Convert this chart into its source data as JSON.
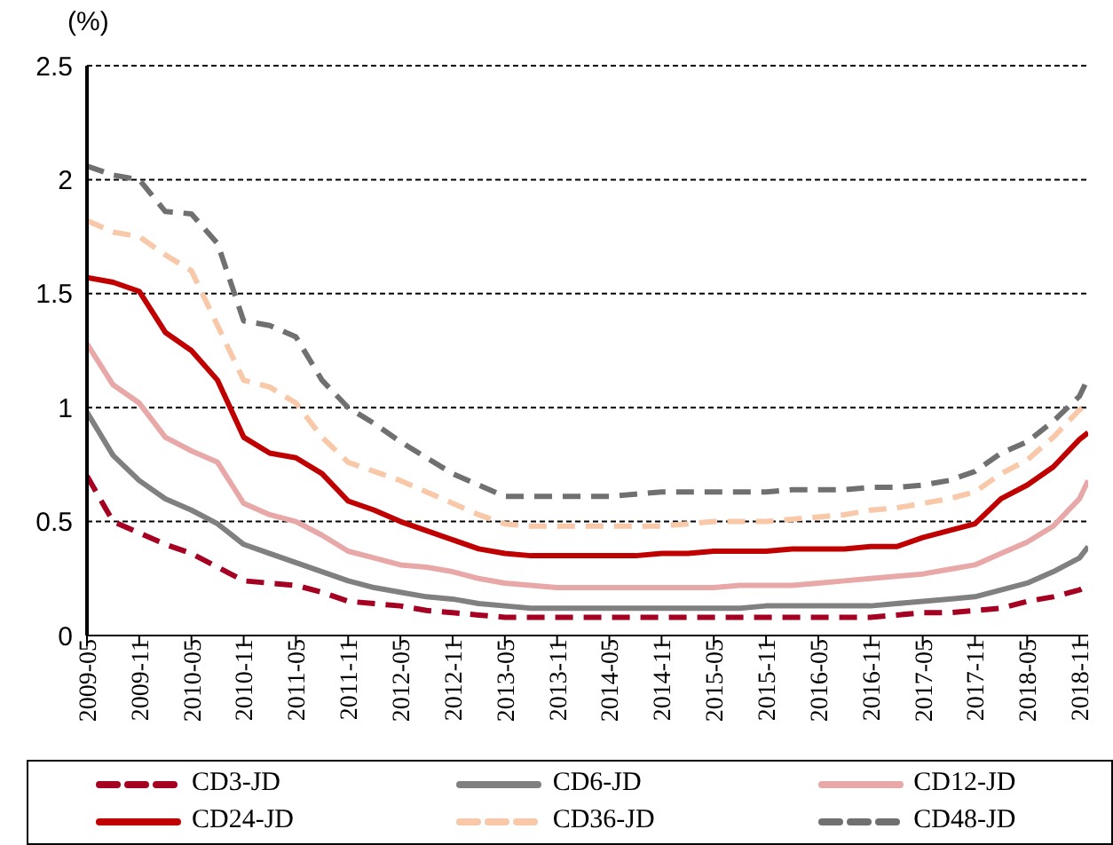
{
  "chart_data": {
    "type": "line",
    "ylabel": "(%)",
    "x": [
      "2009-05",
      "2009-08",
      "2009-11",
      "2010-02",
      "2010-05",
      "2010-08",
      "2010-11",
      "2011-02",
      "2011-05",
      "2011-08",
      "2011-11",
      "2012-02",
      "2012-05",
      "2012-08",
      "2012-11",
      "2013-02",
      "2013-05",
      "2013-08",
      "2013-11",
      "2014-02",
      "2014-05",
      "2014-08",
      "2014-11",
      "2015-02",
      "2015-05",
      "2015-08",
      "2015-11",
      "2016-02",
      "2016-05",
      "2016-08",
      "2016-11",
      "2017-02",
      "2017-05",
      "2017-08",
      "2017-11",
      "2018-02",
      "2018-05",
      "2018-08",
      "2018-11",
      "2018-12"
    ],
    "series": [
      {
        "name": "CD3-JD",
        "color": "#a50021",
        "line_style": "dashed",
        "values": [
          0.7,
          0.5,
          0.45,
          0.4,
          0.36,
          0.3,
          0.24,
          0.23,
          0.22,
          0.19,
          0.15,
          0.14,
          0.13,
          0.11,
          0.1,
          0.09,
          0.08,
          0.08,
          0.08,
          0.08,
          0.08,
          0.08,
          0.08,
          0.08,
          0.08,
          0.08,
          0.08,
          0.08,
          0.08,
          0.08,
          0.08,
          0.09,
          0.1,
          0.1,
          0.11,
          0.12,
          0.15,
          0.17,
          0.2,
          0.22
        ]
      },
      {
        "name": "CD6-JD",
        "color": "#808080",
        "line_style": "solid",
        "values": [
          0.98,
          0.79,
          0.68,
          0.6,
          0.55,
          0.49,
          0.4,
          0.36,
          0.32,
          0.28,
          0.24,
          0.21,
          0.19,
          0.17,
          0.16,
          0.14,
          0.13,
          0.12,
          0.12,
          0.12,
          0.12,
          0.12,
          0.12,
          0.12,
          0.12,
          0.12,
          0.13,
          0.13,
          0.13,
          0.13,
          0.13,
          0.14,
          0.15,
          0.16,
          0.17,
          0.2,
          0.23,
          0.28,
          0.34,
          0.39
        ]
      },
      {
        "name": "CD12-JD",
        "color": "#e8a8a8",
        "line_style": "solid",
        "values": [
          1.28,
          1.1,
          1.02,
          0.87,
          0.81,
          0.76,
          0.58,
          0.53,
          0.5,
          0.44,
          0.37,
          0.34,
          0.31,
          0.3,
          0.28,
          0.25,
          0.23,
          0.22,
          0.21,
          0.21,
          0.21,
          0.21,
          0.21,
          0.21,
          0.21,
          0.22,
          0.22,
          0.22,
          0.23,
          0.24,
          0.25,
          0.26,
          0.27,
          0.29,
          0.31,
          0.36,
          0.41,
          0.48,
          0.6,
          0.68
        ]
      },
      {
        "name": "CD24-JD",
        "color": "#c00000",
        "line_style": "solid",
        "values": [
          1.57,
          1.55,
          1.51,
          1.33,
          1.25,
          1.12,
          0.87,
          0.8,
          0.78,
          0.71,
          0.59,
          0.55,
          0.5,
          0.46,
          0.42,
          0.38,
          0.36,
          0.35,
          0.35,
          0.35,
          0.35,
          0.35,
          0.36,
          0.36,
          0.37,
          0.37,
          0.37,
          0.38,
          0.38,
          0.38,
          0.39,
          0.39,
          0.43,
          0.46,
          0.49,
          0.6,
          0.66,
          0.74,
          0.86,
          0.89
        ]
      },
      {
        "name": "CD36-JD",
        "color": "#f8c8a8",
        "line_style": "dashed",
        "values": [
          1.82,
          1.77,
          1.75,
          1.67,
          1.6,
          1.36,
          1.12,
          1.09,
          1.02,
          0.87,
          0.76,
          0.72,
          0.68,
          0.63,
          0.58,
          0.53,
          0.49,
          0.48,
          0.48,
          0.48,
          0.48,
          0.48,
          0.48,
          0.49,
          0.5,
          0.5,
          0.5,
          0.51,
          0.52,
          0.53,
          0.55,
          0.56,
          0.58,
          0.6,
          0.63,
          0.71,
          0.77,
          0.87,
          0.99,
          1.02
        ]
      },
      {
        "name": "CD48-JD",
        "color": "#707070",
        "line_style": "dashed",
        "values": [
          2.06,
          2.02,
          2.0,
          1.86,
          1.85,
          1.72,
          1.38,
          1.36,
          1.31,
          1.12,
          1.0,
          0.93,
          0.85,
          0.78,
          0.71,
          0.66,
          0.61,
          0.61,
          0.61,
          0.61,
          0.61,
          0.62,
          0.63,
          0.63,
          0.63,
          0.63,
          0.63,
          0.64,
          0.64,
          0.64,
          0.65,
          0.65,
          0.66,
          0.68,
          0.72,
          0.8,
          0.85,
          0.94,
          1.05,
          1.13
        ]
      }
    ],
    "xlim": [
      "2009-05",
      "2018-12"
    ],
    "xticks": [
      "2009-05",
      "2009-11",
      "2010-05",
      "2010-11",
      "2011-05",
      "2011-11",
      "2012-05",
      "2012-11",
      "2013-05",
      "2013-11",
      "2014-05",
      "2014-11",
      "2015-05",
      "2015-11",
      "2016-05",
      "2016-11",
      "2017-05",
      "2017-11",
      "2018-05",
      "2018-11"
    ],
    "ylim": [
      0,
      2.5
    ],
    "yticks": [
      0,
      0.5,
      1,
      1.5,
      2,
      2.5
    ],
    "grid": "y",
    "legend": "bottom",
    "marker": "none"
  }
}
